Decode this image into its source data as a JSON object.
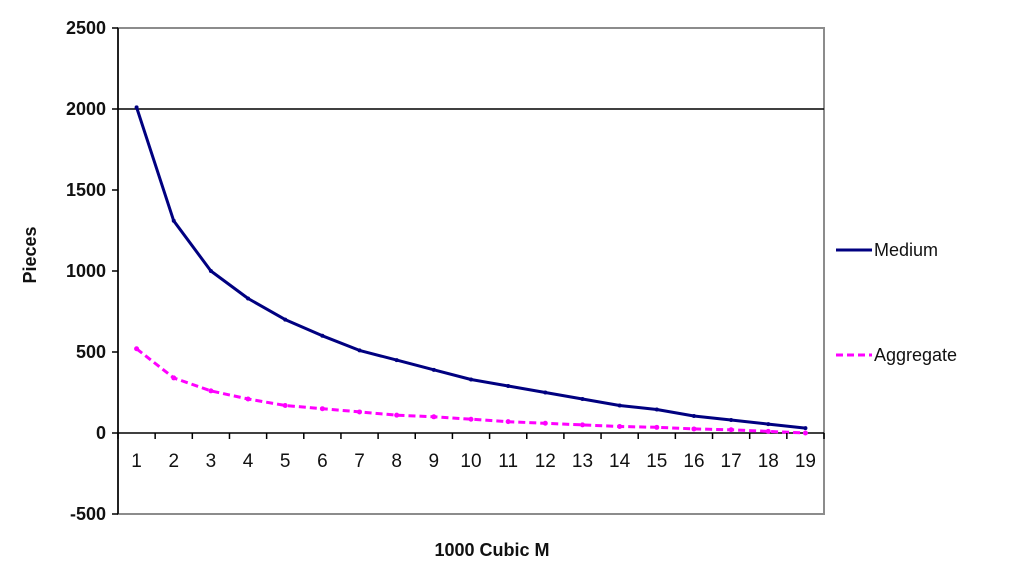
{
  "chart_data": {
    "type": "line",
    "title": "",
    "xlabel": "1000 Cubic M",
    "ylabel": "Pieces",
    "ylim": [
      -500,
      2500
    ],
    "yticks": [
      -500,
      0,
      500,
      1000,
      1500,
      2000,
      2500
    ],
    "categories": [
      "1",
      "2",
      "3",
      "4",
      "5",
      "6",
      "7",
      "8",
      "9",
      "10",
      "11",
      "12",
      "13",
      "14",
      "15",
      "16",
      "17",
      "18",
      "19"
    ],
    "gridlines": [
      2000
    ],
    "legend_position": "right",
    "series": [
      {
        "name": "Medium",
        "color": "#000080",
        "style": "solid",
        "values": [
          2010,
          1310,
          1000,
          830,
          700,
          600,
          510,
          450,
          390,
          330,
          290,
          250,
          210,
          170,
          145,
          105,
          80,
          55,
          30
        ]
      },
      {
        "name": "Aggregate",
        "color": "#ff00ff",
        "style": "dashed",
        "values": [
          520,
          340,
          260,
          210,
          170,
          150,
          130,
          110,
          100,
          85,
          70,
          60,
          50,
          40,
          35,
          25,
          20,
          10,
          0
        ]
      }
    ]
  }
}
